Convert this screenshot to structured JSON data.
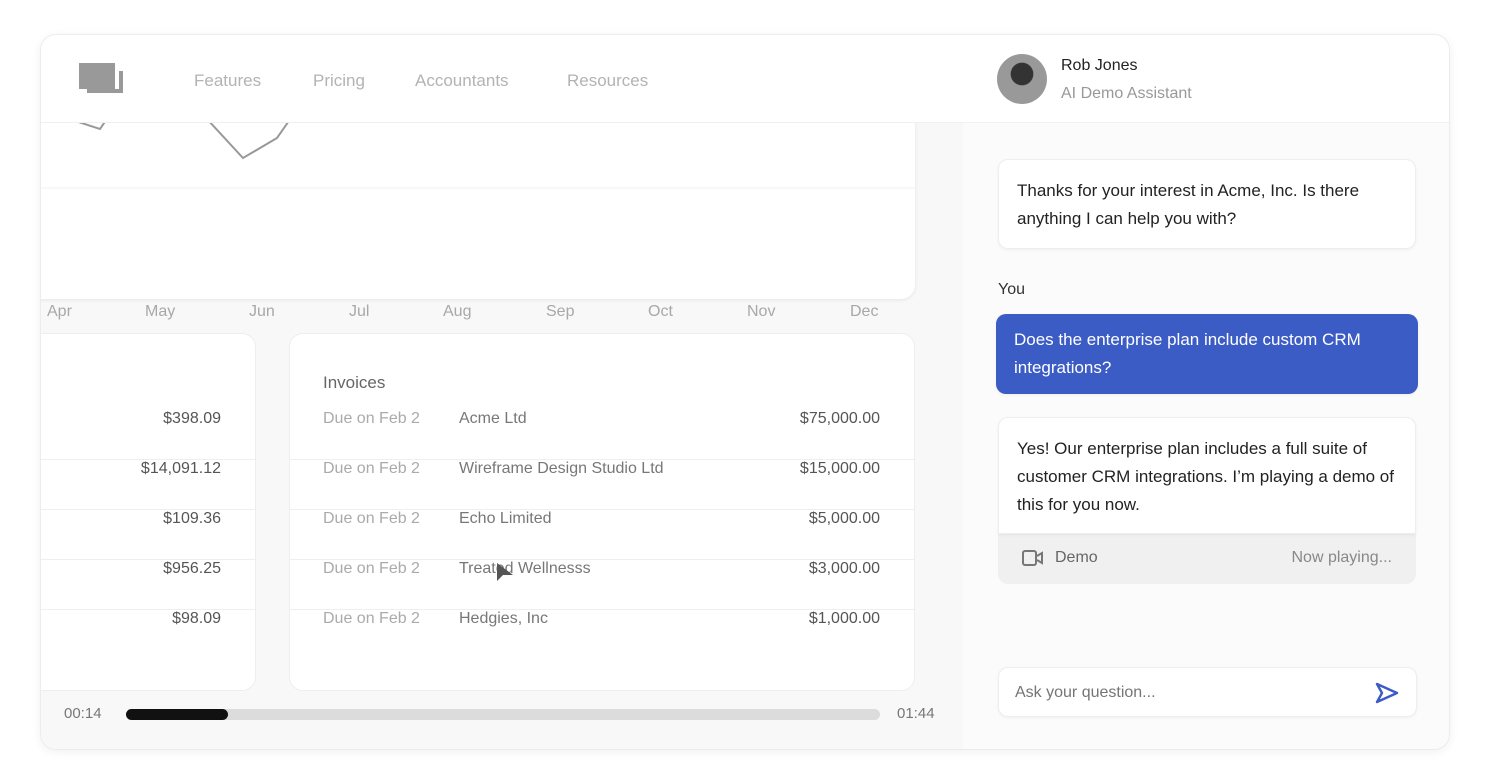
{
  "nav": {
    "items": [
      "Features",
      "Pricing",
      "Accountants",
      "Resources"
    ]
  },
  "chart": {
    "months": [
      "Apr",
      "May",
      "Jun",
      "Jul",
      "Aug",
      "Sep",
      "Oct",
      "Nov",
      "Dec"
    ]
  },
  "left_card": {
    "amounts": [
      "$398.09",
      "$14,091.12",
      "$109.36",
      "$956.25",
      "$98.09"
    ]
  },
  "invoices": {
    "title": "Invoices",
    "rows": [
      {
        "due": "Due on Feb 2",
        "name": "Acme Ltd",
        "amount": "$75,000.00"
      },
      {
        "due": "Due on Feb 2",
        "name": "Wireframe Design Studio Ltd",
        "amount": "$15,000.00"
      },
      {
        "due": "Due on Feb 2",
        "name": "Echo Limited",
        "amount": "$5,000.00"
      },
      {
        "due": "Due on Feb 2",
        "name": "Treated Wellnesss",
        "amount": "$3,000.00"
      },
      {
        "due": "Due on Feb 2",
        "name": "Hedgies, Inc",
        "amount": "$1,000.00"
      }
    ]
  },
  "player": {
    "current": "00:14",
    "total": "01:44",
    "progress": 0.135
  },
  "assistant": {
    "name": "Rob Jones",
    "role": "AI Demo Assistant"
  },
  "chat": {
    "greeting": "Thanks for your interest in Acme, Inc. Is there anything I can help you with?",
    "you_label": "You",
    "user_message": "Does the enterprise plan include custom CRM integrations?",
    "reply": "Yes! Our enterprise plan includes a full suite of customer CRM integrations. I’m playing a demo of this for you now.",
    "demo_label": "Demo",
    "demo_status": "Now playing...",
    "input_placeholder": "Ask your question..."
  },
  "colors": {
    "accent": "#3b5bc5"
  }
}
